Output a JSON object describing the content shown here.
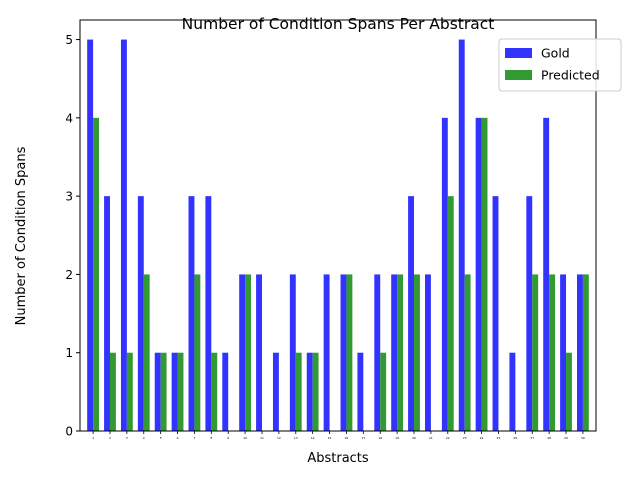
{
  "chart_data": {
    "type": "bar",
    "title": "Number of Condition Spans Per Abstract",
    "xlabel": "Abstracts",
    "ylabel": "Number of Condition Spans",
    "categories": [
      "1",
      "2",
      "3",
      "4",
      "5",
      "6",
      "7",
      "8",
      "9",
      "10",
      "11",
      "12",
      "13",
      "14",
      "15",
      "16",
      "17",
      "18",
      "19",
      "20",
      "21",
      "22",
      "23",
      "24",
      "25",
      "26",
      "27",
      "28",
      "29",
      "30"
    ],
    "series": [
      {
        "name": "Gold",
        "color": "#3333ff",
        "values": [
          5,
          3,
          5,
          3,
          1,
          1,
          3,
          3,
          1,
          2,
          2,
          1,
          2,
          1,
          2,
          2,
          1,
          2,
          2,
          3,
          2,
          4,
          5,
          4,
          3,
          1,
          3,
          4,
          2,
          2
        ]
      },
      {
        "name": "Predicted",
        "color": "#339933",
        "values": [
          4,
          1,
          1,
          2,
          1,
          1,
          2,
          1,
          0,
          2,
          0,
          0,
          1,
          1,
          0,
          2,
          0,
          1,
          2,
          2,
          0,
          3,
          2,
          4,
          0,
          0,
          2,
          2,
          1,
          2
        ]
      }
    ],
    "ylim": [
      0,
      5.25
    ],
    "yticks": [
      0,
      1,
      2,
      3,
      4,
      5
    ],
    "legend_position": "top-right",
    "grid": false
  }
}
